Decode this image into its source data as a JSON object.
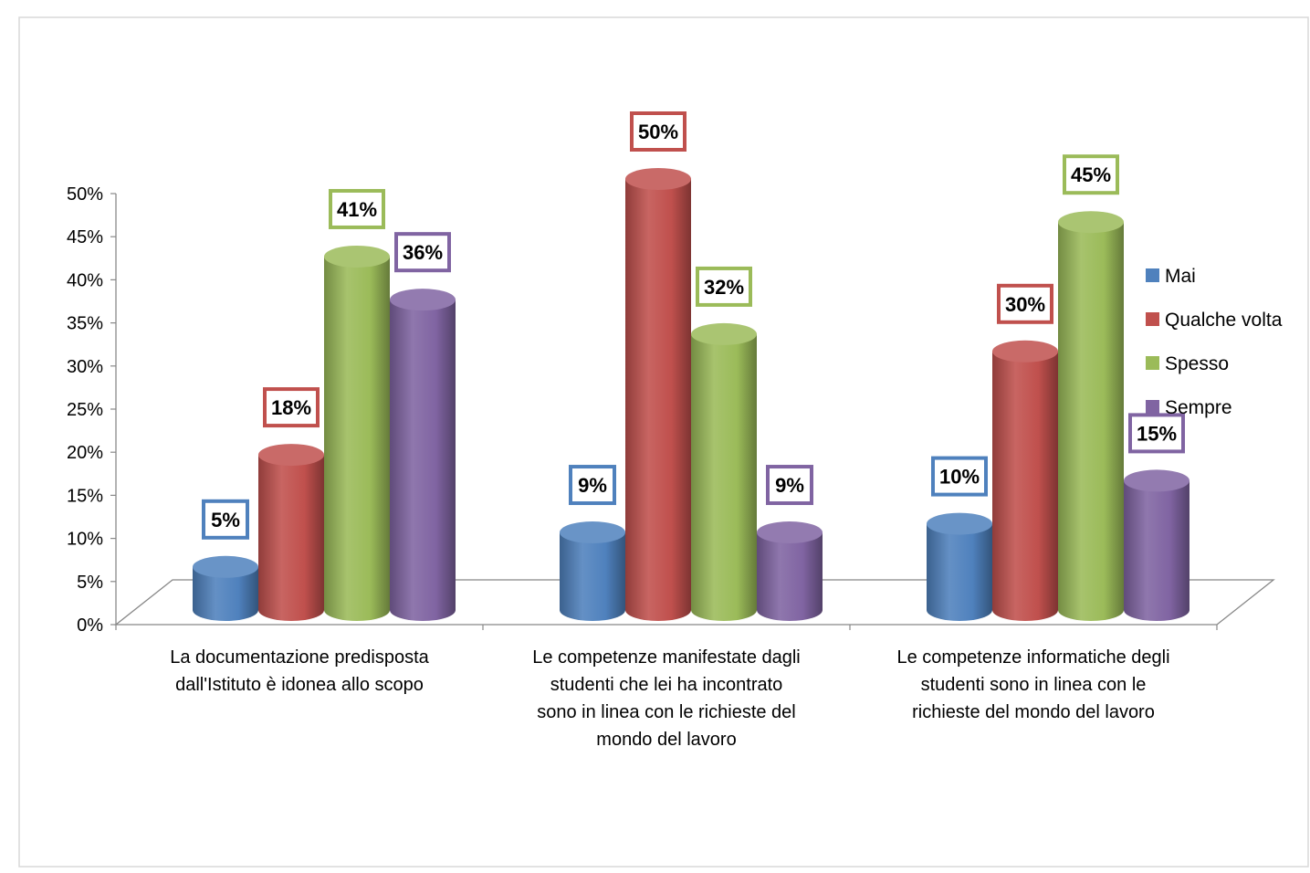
{
  "chart_data": {
    "type": "bar",
    "title": "",
    "xlabel": "",
    "ylabel": "",
    "ylim": [
      0,
      50
    ],
    "y_ticks": [
      "0%",
      "5%",
      "10%",
      "15%",
      "20%",
      "25%",
      "30%",
      "35%",
      "40%",
      "45%",
      "50%"
    ],
    "categories": [
      [
        "La documentazione predisposta",
        "dall'Istituto è idonea allo scopo"
      ],
      [
        "Le competenze manifestate dagli",
        "studenti che lei ha incontrato",
        "sono in linea con le richieste del",
        "mondo del lavoro"
      ],
      [
        "Le competenze informatiche degli",
        "studenti sono in linea con le",
        "richieste del mondo del lavoro"
      ]
    ],
    "series": [
      {
        "name": "Mai",
        "color": "#4f81bd",
        "values": [
          5,
          9,
          10
        ],
        "labels": [
          "5%",
          "9%",
          "10%"
        ]
      },
      {
        "name": "Qualche volta",
        "color": "#c0504d",
        "values": [
          18,
          50,
          30
        ],
        "labels": [
          "18%",
          "50%",
          "30%"
        ]
      },
      {
        "name": "Spesso",
        "color": "#9bbb59",
        "values": [
          41,
          32,
          45
        ],
        "labels": [
          "41%",
          "32%",
          "45%"
        ]
      },
      {
        "name": "Sempre",
        "color": "#8064a2",
        "values": [
          36,
          9,
          15
        ],
        "labels": [
          "36%",
          "9%",
          "15%"
        ]
      }
    ],
    "legend_position": "right",
    "grid": false,
    "style": "3d-cylinder"
  }
}
